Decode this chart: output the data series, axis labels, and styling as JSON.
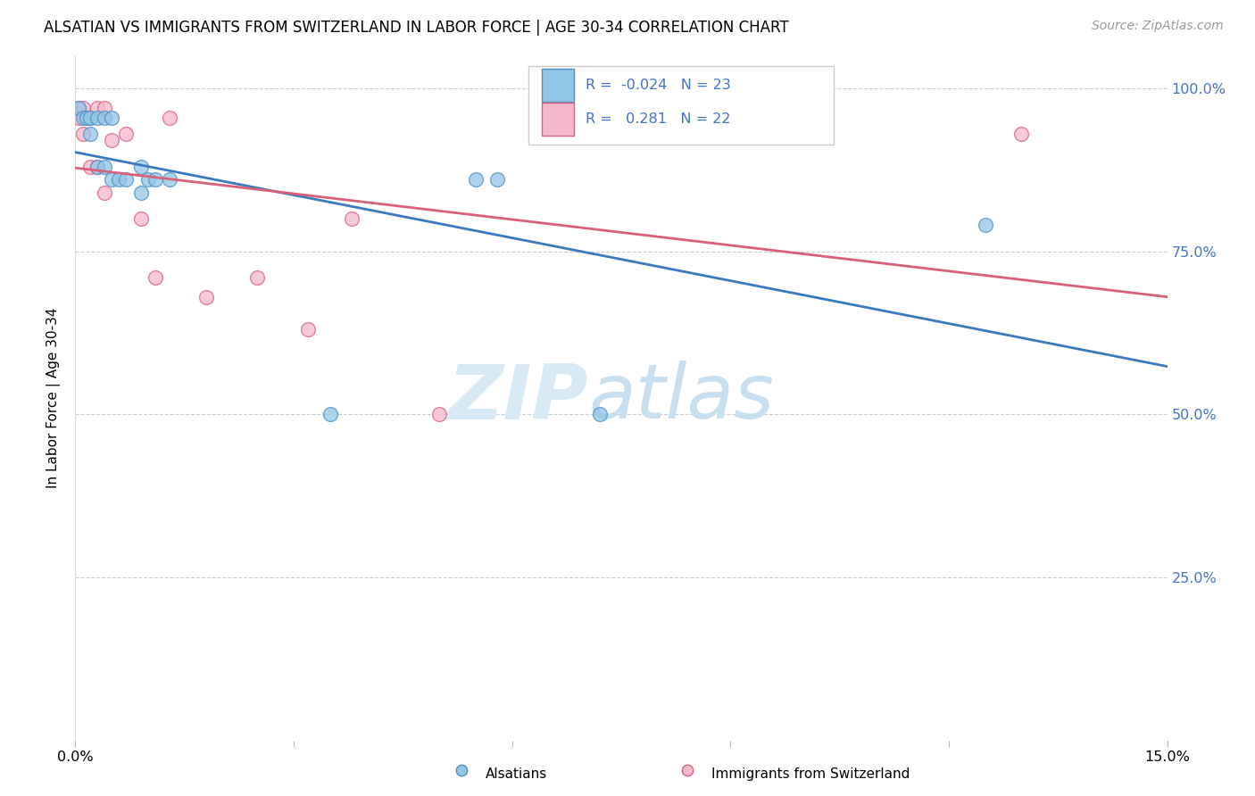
{
  "title": "ALSATIAN VS IMMIGRANTS FROM SWITZERLAND IN LABOR FORCE | AGE 30-34 CORRELATION CHART",
  "source": "Source: ZipAtlas.com",
  "ylabel": "In Labor Force | Age 30-34",
  "xlim": [
    0.0,
    0.15
  ],
  "ylim": [
    0.0,
    1.05
  ],
  "yticks": [
    0.25,
    0.5,
    0.75,
    1.0
  ],
  "ytick_labels": [
    "25.0%",
    "50.0%",
    "75.0%",
    "100.0%"
  ],
  "xtick_minor": [
    0.03,
    0.06,
    0.09,
    0.12
  ],
  "alsatians_x": [
    0.0005,
    0.001,
    0.0015,
    0.002,
    0.002,
    0.003,
    0.003,
    0.004,
    0.004,
    0.005,
    0.005,
    0.006,
    0.007,
    0.009,
    0.009,
    0.01,
    0.011,
    0.013,
    0.035,
    0.055,
    0.058,
    0.072,
    0.125
  ],
  "alsatians_y": [
    0.97,
    0.955,
    0.955,
    0.955,
    0.93,
    0.955,
    0.88,
    0.955,
    0.88,
    0.955,
    0.86,
    0.86,
    0.86,
    0.88,
    0.84,
    0.86,
    0.86,
    0.86,
    0.5,
    0.86,
    0.86,
    0.5,
    0.79
  ],
  "swiss_x": [
    0.0005,
    0.0005,
    0.001,
    0.001,
    0.0015,
    0.002,
    0.002,
    0.003,
    0.003,
    0.004,
    0.004,
    0.005,
    0.007,
    0.009,
    0.011,
    0.013,
    0.018,
    0.025,
    0.032,
    0.038,
    0.05,
    0.13
  ],
  "swiss_y": [
    0.97,
    0.955,
    0.97,
    0.93,
    0.955,
    0.955,
    0.88,
    0.97,
    0.88,
    0.97,
    0.84,
    0.92,
    0.93,
    0.8,
    0.71,
    0.955,
    0.68,
    0.71,
    0.63,
    0.8,
    0.5,
    0.93
  ],
  "R_alsatians": -0.024,
  "N_alsatians": 23,
  "R_swiss": 0.281,
  "N_swiss": 22,
  "color_alsatians_fill": "#93c6e8",
  "color_alsatians_edge": "#4a90c4",
  "color_swiss_fill": "#f4b8cb",
  "color_swiss_edge": "#d9607a",
  "color_alsatians_line": "#3a7abf",
  "color_swiss_line": "#d9607a",
  "watermark_zip": "ZIP",
  "watermark_atlas": "atlas",
  "watermark_color": "#d8eaf6",
  "legend_label_alsatians": "Alsatians",
  "legend_label_swiss": "Immigrants from Switzerland"
}
